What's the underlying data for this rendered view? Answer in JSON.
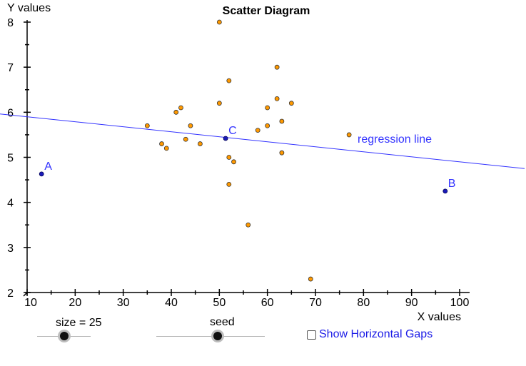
{
  "chart_data": {
    "type": "scatter",
    "title": "Scatter Diagram",
    "xlabel": "X values",
    "ylabel": "Y values",
    "xlim": [
      10,
      100
    ],
    "ylim": [
      2,
      8
    ],
    "x_ticks": [
      10,
      20,
      30,
      40,
      50,
      60,
      70,
      80,
      90,
      100
    ],
    "y_ticks": [
      2,
      3,
      4,
      5,
      6,
      7,
      8
    ],
    "grid": false,
    "points": [
      {
        "x": 50,
        "y": 8.0
      },
      {
        "x": 52,
        "y": 6.7
      },
      {
        "x": 62,
        "y": 7.0
      },
      {
        "x": 50,
        "y": 6.2
      },
      {
        "x": 62,
        "y": 6.3
      },
      {
        "x": 60,
        "y": 6.1
      },
      {
        "x": 65,
        "y": 6.2
      },
      {
        "x": 42,
        "y": 6.1
      },
      {
        "x": 41,
        "y": 6.0
      },
      {
        "x": 35,
        "y": 5.7
      },
      {
        "x": 44,
        "y": 5.7
      },
      {
        "x": 60,
        "y": 5.7
      },
      {
        "x": 63,
        "y": 5.8
      },
      {
        "x": 58,
        "y": 5.6
      },
      {
        "x": 77,
        "y": 5.5
      },
      {
        "x": 43,
        "y": 5.4
      },
      {
        "x": 38,
        "y": 5.3
      },
      {
        "x": 46,
        "y": 5.3
      },
      {
        "x": 39,
        "y": 5.2
      },
      {
        "x": 63,
        "y": 5.1
      },
      {
        "x": 52,
        "y": 5.0
      },
      {
        "x": 53,
        "y": 4.9
      },
      {
        "x": 52,
        "y": 4.4
      },
      {
        "x": 56,
        "y": 3.5
      },
      {
        "x": 69,
        "y": 2.3
      }
    ],
    "regression_line": {
      "label": "regression line",
      "x1": 10,
      "y1": 5.9,
      "x2": 100,
      "y2": 4.9
    },
    "labeled_points": [
      {
        "label": "A",
        "x": 13,
        "y": 4.63
      },
      {
        "label": "B",
        "x": 97,
        "y": 4.25
      },
      {
        "label": "C",
        "x": 51.3,
        "y": 5.42
      }
    ],
    "colors": {
      "data_point": "#ff9900",
      "data_point_stroke": "#333333",
      "special_point": "#1a1ab8",
      "line": "#3333ff",
      "axis": "#000000"
    }
  },
  "controls": {
    "size_slider": {
      "label": "size = 25",
      "value": 25
    },
    "seed_slider": {
      "label": "seed"
    },
    "horizontal_gaps": {
      "label": "Show Horizontal Gaps",
      "checked": false
    }
  }
}
